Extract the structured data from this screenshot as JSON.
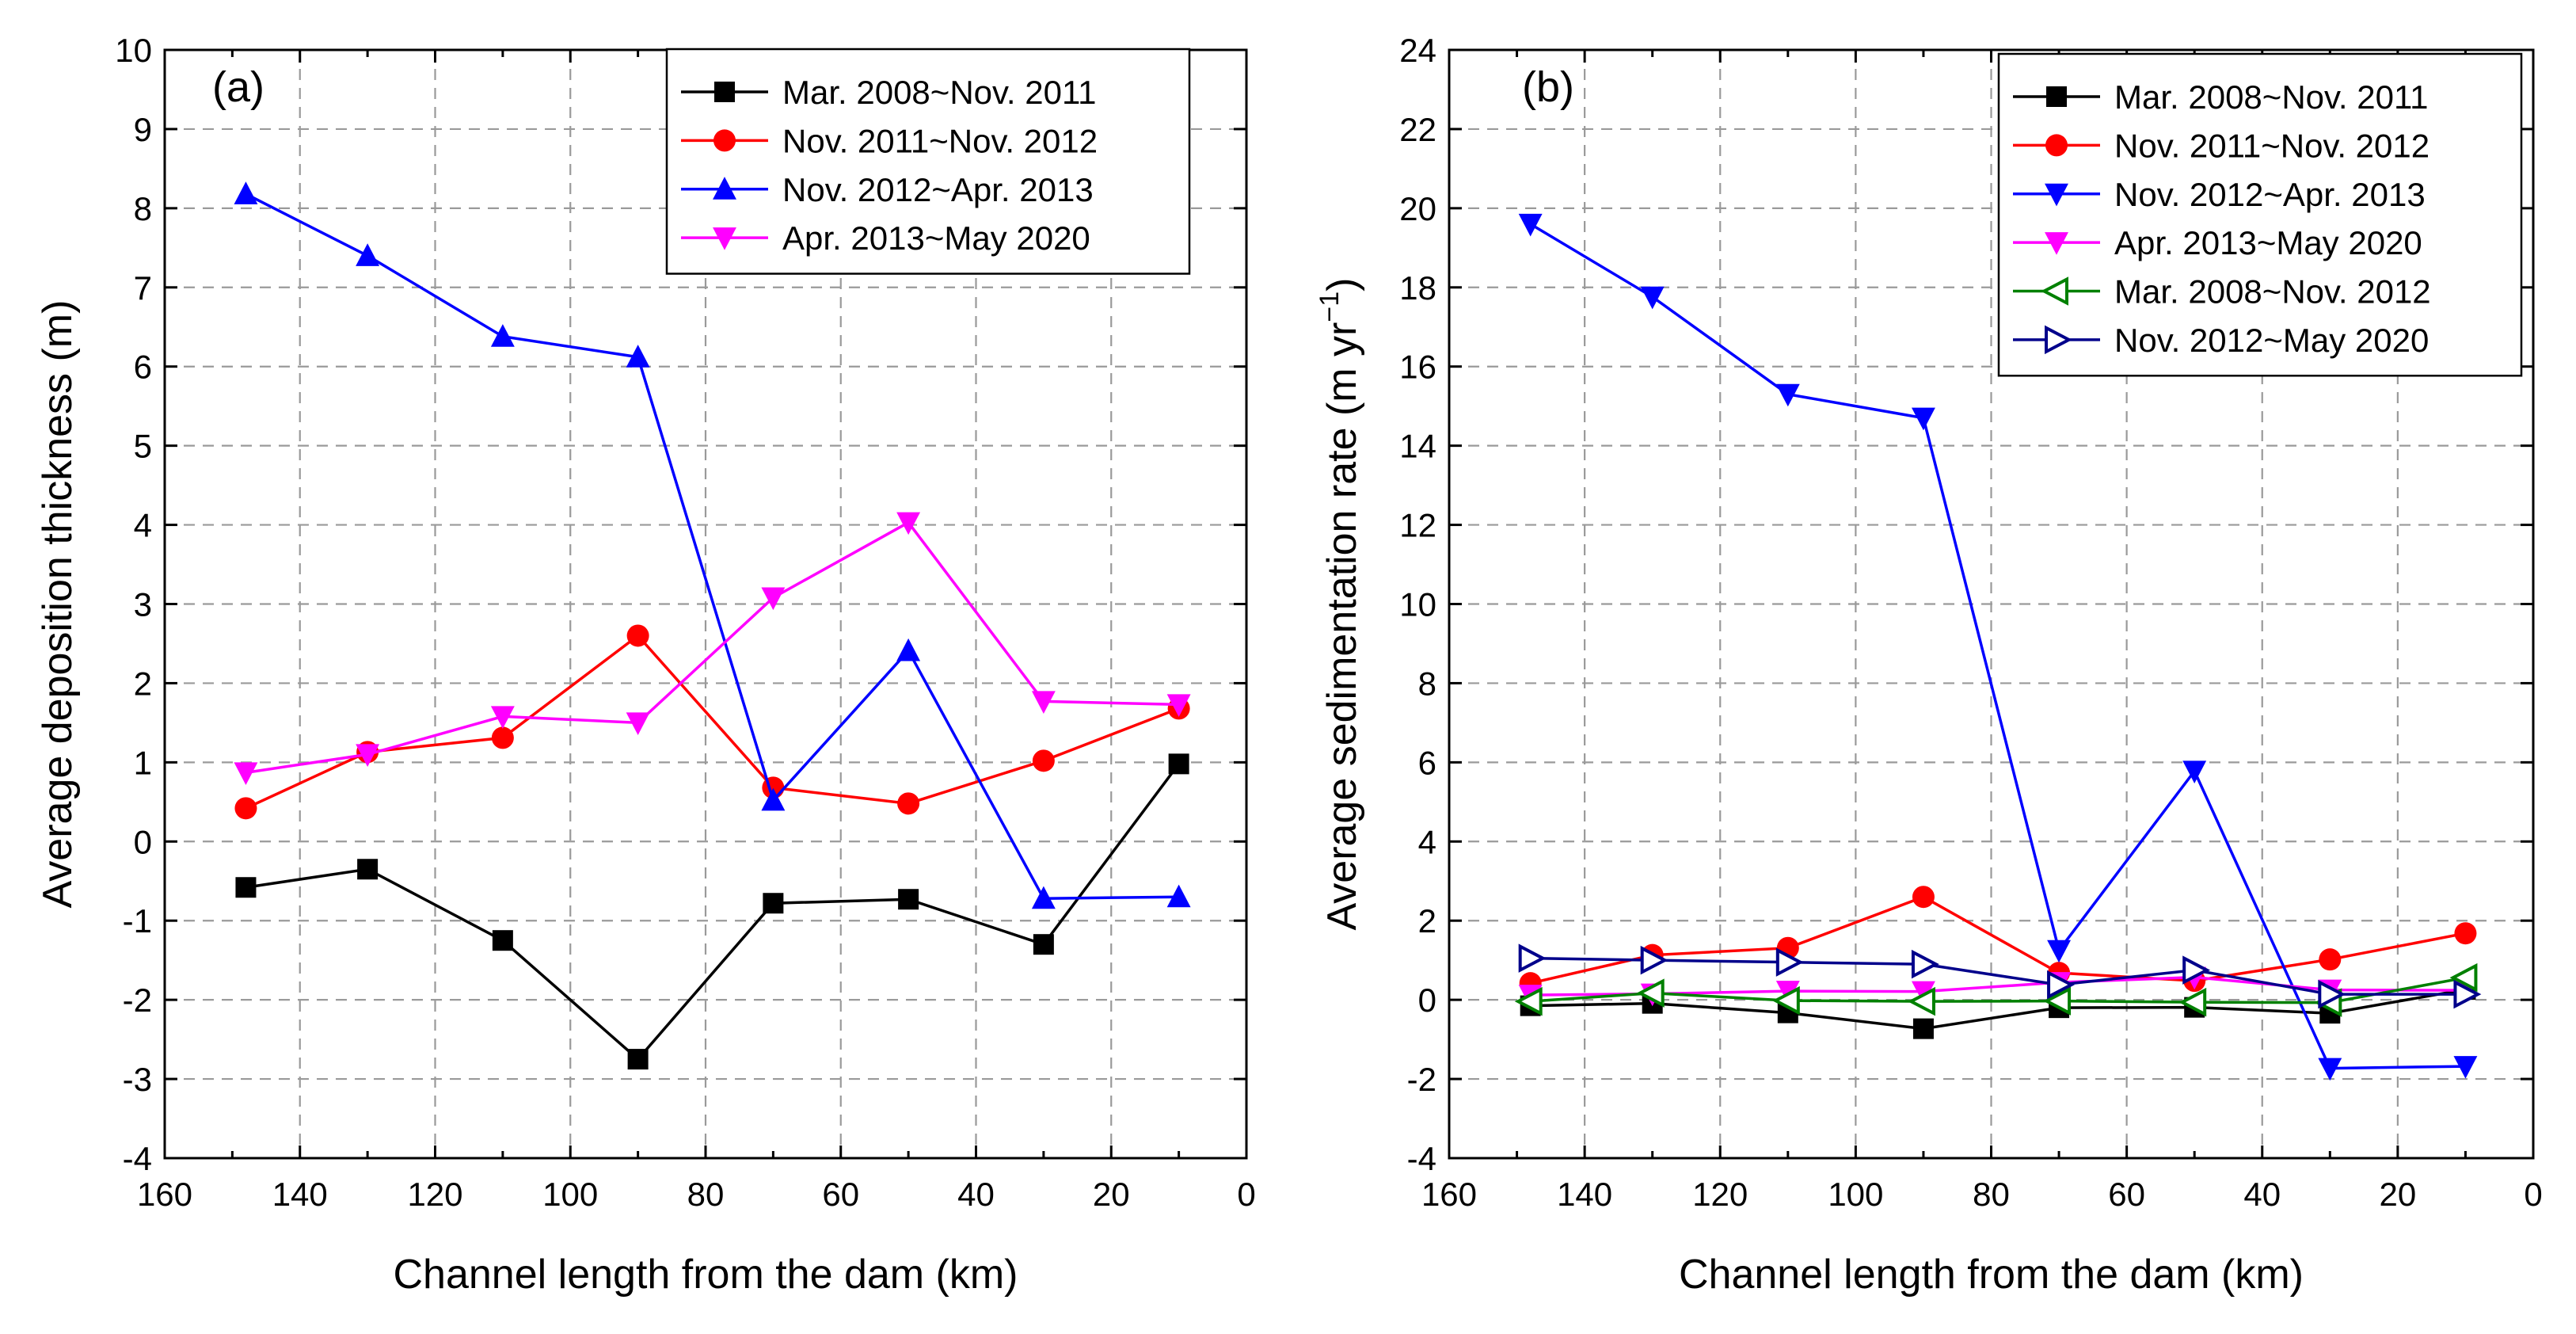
{
  "chart_data": [
    {
      "type": "line",
      "panel_label": "(a)",
      "xlabel": "Channel length from the dam (km)",
      "ylabel": "Average deposition thickness (m)",
      "ylabel_sup": "",
      "ylabel_end": "",
      "xlim": [
        160,
        0
      ],
      "ylim": [
        -4,
        10
      ],
      "xticks": [
        160,
        140,
        120,
        100,
        80,
        60,
        40,
        20,
        0
      ],
      "yticks": [
        -4,
        -3,
        -2,
        -1,
        0,
        1,
        2,
        3,
        4,
        5,
        6,
        7,
        8,
        9,
        10
      ],
      "grid": true,
      "legend_position": "top-right",
      "x": [
        148,
        130,
        110,
        90,
        70,
        50,
        30,
        10
      ],
      "series": [
        {
          "name": "Mar. 2008~Nov. 2011",
          "color": "#000000",
          "marker": "square",
          "values": [
            -0.58,
            -0.35,
            -1.25,
            -2.75,
            -0.78,
            -0.73,
            -1.3,
            0.98
          ]
        },
        {
          "name": "Nov. 2011~Nov. 2012",
          "color": "#ff0000",
          "marker": "circle",
          "values": [
            0.42,
            1.13,
            1.31,
            2.6,
            0.68,
            0.48,
            1.02,
            1.68
          ]
        },
        {
          "name": "Nov. 2012~Apr. 2013",
          "color": "#0000ff",
          "marker": "triangle-up",
          "values": [
            8.18,
            7.4,
            6.38,
            6.12,
            0.52,
            2.41,
            -0.72,
            -0.7
          ]
        },
        {
          "name": "Apr. 2013~May 2020",
          "color": "#ff00ff",
          "marker": "triangle-down",
          "values": [
            0.87,
            1.1,
            1.58,
            1.5,
            3.08,
            4.03,
            1.77,
            1.73
          ]
        }
      ]
    },
    {
      "type": "line",
      "panel_label": "(b)",
      "xlabel": "Channel length from the dam (km)",
      "ylabel": "Average sedimentation rate (m yr",
      "ylabel_sup": "−1",
      "ylabel_end": ")",
      "xlim": [
        160,
        0
      ],
      "ylim": [
        -4,
        24
      ],
      "xticks": [
        160,
        140,
        120,
        100,
        80,
        60,
        40,
        20,
        0
      ],
      "yticks": [
        -4,
        -2,
        0,
        2,
        4,
        6,
        8,
        10,
        12,
        14,
        16,
        18,
        20,
        22,
        24
      ],
      "grid": true,
      "legend_position": "top-right",
      "x": [
        148,
        130,
        110,
        90,
        70,
        50,
        30,
        10
      ],
      "series": [
        {
          "name": "Mar. 2008~Nov. 2011",
          "color": "#000000",
          "marker": "square",
          "values": [
            -0.15,
            -0.09,
            -0.33,
            -0.73,
            -0.2,
            -0.19,
            -0.34,
            0.26
          ]
        },
        {
          "name": "Nov. 2011~Nov. 2012",
          "color": "#ff0000",
          "marker": "circle",
          "values": [
            0.42,
            1.13,
            1.31,
            2.6,
            0.68,
            0.48,
            1.02,
            1.68
          ]
        },
        {
          "name": "Nov. 2012~Apr. 2013",
          "color": "#0000ff",
          "marker": "triangle-down",
          "values": [
            19.6,
            17.76,
            15.3,
            14.7,
            1.25,
            5.78,
            -1.73,
            -1.68
          ]
        },
        {
          "name": "Apr. 2013~May 2020",
          "color": "#ff00ff",
          "marker": "triangle-down",
          "values": [
            0.12,
            0.15,
            0.22,
            0.21,
            0.44,
            0.57,
            0.25,
            0.24
          ]
        },
        {
          "name": "Mar. 2008~Nov. 2012",
          "color": "#008000",
          "marker": "triangle-left-open",
          "values": [
            -0.04,
            0.17,
            -0.02,
            -0.04,
            -0.03,
            -0.06,
            -0.07,
            0.56
          ]
        },
        {
          "name": "Nov. 2012~May 2020",
          "color": "#00008b",
          "marker": "triangle-right-open",
          "values": [
            1.05,
            1.0,
            0.95,
            0.9,
            0.38,
            0.75,
            0.14,
            0.14
          ]
        }
      ]
    }
  ]
}
